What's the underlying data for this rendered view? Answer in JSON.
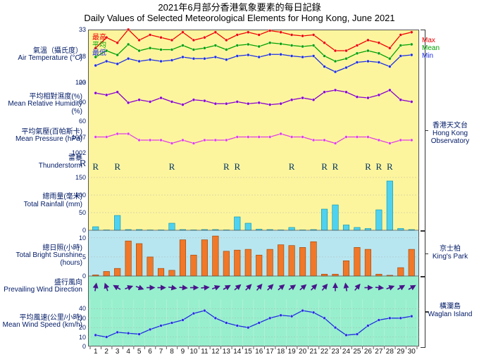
{
  "title": {
    "cn": "2021年6月部分香港氣象要素的每日記錄",
    "en": "Daily Values of Selected Meteorological Elements for Hong Kong, June 2021"
  },
  "group_labels": {
    "hko": {
      "cn": "香港天文台",
      "en": "Hong Kong Observatory"
    },
    "kp": {
      "cn": "京士柏",
      "en": "King's Park"
    },
    "wgl": {
      "cn": "橫瀾島",
      "en": "Waglan Island"
    }
  },
  "days": [
    1,
    2,
    3,
    4,
    5,
    6,
    7,
    8,
    9,
    10,
    11,
    12,
    13,
    14,
    15,
    16,
    17,
    18,
    19,
    20,
    21,
    22,
    23,
    24,
    25,
    26,
    27,
    28,
    29,
    30
  ],
  "plot": {
    "x_left_pad": 3,
    "x_right_pad": 3
  },
  "temperature": {
    "label": {
      "cn": "氣溫（攝氏度）",
      "en": "Air Temperature (°C)"
    },
    "bg_color": "#fdf59d",
    "ymin": 23,
    "ymax": 33,
    "yticks": [
      23,
      28,
      33
    ],
    "series": {
      "max": {
        "color": "#ee0000",
        "label_cn": "最高",
        "label_en": "Max",
        "values": [
          29.5,
          31.5,
          30.5,
          33.0,
          31.0,
          32.0,
          31.5,
          31.0,
          32.5,
          31.0,
          31.5,
          32.5,
          31.0,
          32.0,
          32.5,
          32.0,
          32.8,
          32.5,
          32.0,
          31.8,
          32.0,
          30.5,
          29.0,
          29.0,
          30.0,
          31.0,
          30.5,
          29.5,
          32.0,
          32.5
        ]
      },
      "mean": {
        "color": "#00a000",
        "label_cn": "平均",
        "label_en": "Mean",
        "values": [
          27.8,
          29.0,
          28.2,
          30.2,
          29.0,
          29.5,
          29.2,
          29.2,
          30.0,
          29.2,
          29.5,
          30.0,
          29.2,
          30.0,
          30.2,
          29.8,
          30.5,
          30.3,
          30.0,
          29.8,
          30.0,
          28.0,
          27.0,
          27.5,
          28.5,
          29.0,
          28.5,
          27.5,
          30.0,
          30.2
        ]
      },
      "min": {
        "color": "#2030e0",
        "label_cn": "最低",
        "label_en": "Min",
        "values": [
          26.2,
          27.0,
          26.5,
          27.5,
          27.0,
          27.3,
          27.0,
          27.2,
          27.8,
          27.5,
          27.5,
          27.8,
          27.3,
          28.0,
          28.2,
          27.8,
          28.3,
          28.3,
          28.0,
          27.8,
          28.0,
          26.0,
          25.0,
          25.8,
          26.8,
          27.0,
          26.8,
          26.0,
          28.0,
          28.2
        ]
      }
    }
  },
  "humidity": {
    "label": {
      "cn": "平均相對濕度(%)",
      "en": "Mean Relative Humidity (%)"
    },
    "bg_color": "#fdf59d",
    "ymin": 60,
    "ymax": 100,
    "yticks": [
      60,
      80,
      100
    ],
    "color": "#8800cc",
    "values": [
      89,
      87,
      90,
      79,
      82,
      80,
      84,
      80,
      77,
      82,
      81,
      78,
      78,
      80,
      78,
      79,
      77,
      78,
      82,
      84,
      82,
      90,
      92,
      90,
      85,
      84,
      87,
      92,
      82,
      80
    ]
  },
  "pressure": {
    "label": {
      "cn": "平均氣壓(百帕斯卡)",
      "en": "Mean Pressure (hPa)"
    },
    "bg_color": "#fdf59d",
    "ymin": 1002,
    "ymax": 1012,
    "yticks": [
      1002,
      1007
    ],
    "color": "#e040e0",
    "values": [
      1007,
      1007,
      1008,
      1008,
      1006,
      1006,
      1006,
      1005,
      1006,
      1005,
      1006,
      1006,
      1006,
      1007,
      1007,
      1007,
      1007,
      1008,
      1007,
      1007,
      1006,
      1006,
      1005,
      1007,
      1007,
      1007,
      1006,
      1005,
      1006,
      1006
    ]
  },
  "thunderstorm": {
    "label": {
      "cn": "雷暴",
      "en": "Thunderstorm"
    },
    "bg_color": "#fdf59d",
    "symbol": "R",
    "days": [
      1,
      3,
      8,
      13,
      14,
      19,
      22,
      23,
      26,
      27,
      28
    ]
  },
  "rainfall": {
    "label": {
      "cn": "總雨量(毫米)",
      "en": "Total Rainfall (mm)"
    },
    "bg_color": "#fdf59d",
    "ymin": 0,
    "ymax": 160,
    "yticks": [
      0,
      50,
      100,
      150
    ],
    "bar_fill": "#4fd2f0",
    "bar_stroke": "#0090b0",
    "values": [
      10,
      1,
      42,
      2,
      2,
      1,
      1,
      20,
      2,
      1,
      2,
      2,
      1,
      38,
      20,
      3,
      2,
      1,
      8,
      1,
      2,
      60,
      72,
      15,
      8,
      5,
      58,
      140,
      5,
      2
    ]
  },
  "sunshine": {
    "label": {
      "cn": "總日照(小時)",
      "en": "Total Bright Sunshine (hours)"
    },
    "bg_color": "#b8e6f0",
    "ymin": 0,
    "ymax": 12,
    "yticks": [
      0,
      5,
      10
    ],
    "bar_fill": "#f07828",
    "bar_stroke": "#a04000",
    "values": [
      0.3,
      1.2,
      2.0,
      9.2,
      8.5,
      5.0,
      2.0,
      1.5,
      9.5,
      5.5,
      9.5,
      10.5,
      6.5,
      6.8,
      7.0,
      5.5,
      7.0,
      8.2,
      8.0,
      7.5,
      9.0,
      0.5,
      0.5,
      4.0,
      7.5,
      7.0,
      0.5,
      0.2,
      2.2,
      7.0
    ]
  },
  "winddir": {
    "label": {
      "cn": "盛行風向",
      "en": "Prevailing Wind Direction"
    },
    "bg_color": "#97efcd",
    "color": "#4a148c",
    "values_deg": [
      10,
      340,
      300,
      70,
      110,
      90,
      90,
      100,
      95,
      90,
      85,
      70,
      60,
      50,
      45,
      40,
      45,
      50,
      55,
      50,
      45,
      40,
      0,
      350,
      40,
      90,
      95,
      70,
      60,
      60
    ]
  },
  "windspeed": {
    "label": {
      "cn": "平均風速(公里/小時)",
      "en": "Mean Wind Speed (km/h)"
    },
    "bg_color": "#97efcd",
    "ymin": 0,
    "ymax": 50,
    "yticks": [
      0,
      10,
      20,
      30,
      40
    ],
    "color": "#2030e0",
    "values": [
      12,
      10,
      15,
      14,
      13,
      18,
      22,
      25,
      28,
      35,
      38,
      30,
      25,
      22,
      20,
      25,
      30,
      33,
      32,
      38,
      36,
      30,
      20,
      12,
      13,
      22,
      28,
      30,
      30,
      32
    ]
  },
  "style": {
    "grid_color": "#aaaaaa",
    "marker_radius": 2
  }
}
